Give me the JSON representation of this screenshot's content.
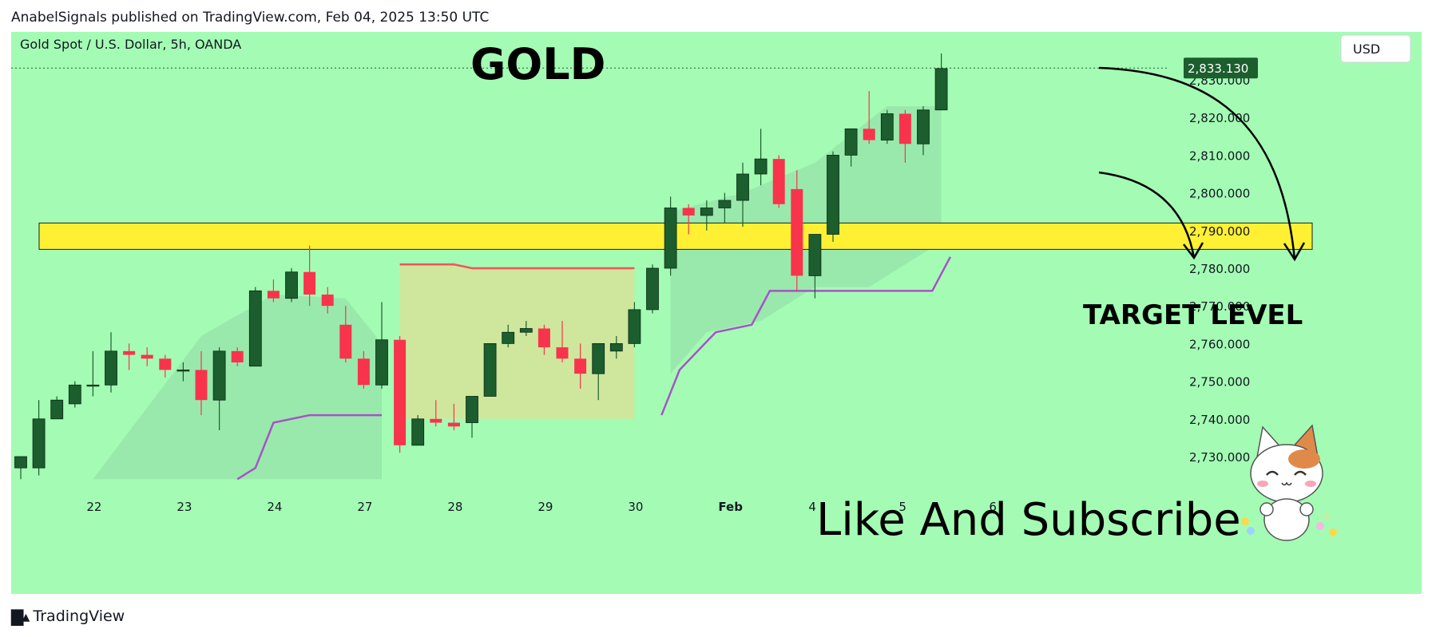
{
  "header": {
    "published_by": "AnabelSignals published on TradingView.com, Feb 04, 2025 13:50 UTC"
  },
  "footer": {
    "brand": "TradingView",
    "logo_icon": "tradingview-logo-icon"
  },
  "chart_data": {
    "type": "candlestick",
    "symbol_label": "Gold Spot / U.S. Dollar, 5h, OANDA",
    "title": "GOLD",
    "currency_button": "USD",
    "last_price_label": "2,833.130",
    "last_price": 2833.13,
    "ylim": [
      2724,
      2840
    ],
    "y_ticks": [
      {
        "value": 2730,
        "label": "2,730.000"
      },
      {
        "value": 2740,
        "label": "2,740.000"
      },
      {
        "value": 2750,
        "label": "2,750.000"
      },
      {
        "value": 2760,
        "label": "2,760.000"
      },
      {
        "value": 2770,
        "label": "2,770.000"
      },
      {
        "value": 2780,
        "label": "2,780.000"
      },
      {
        "value": 2790,
        "label": "2,790.000"
      },
      {
        "value": 2800,
        "label": "2,800.000"
      },
      {
        "value": 2810,
        "label": "2,810.000"
      },
      {
        "value": 2820,
        "label": "2,820.000"
      },
      {
        "value": 2830,
        "label": "2,830.000"
      }
    ],
    "x_ticks": [
      {
        "index": 4,
        "label": "22"
      },
      {
        "index": 9,
        "label": "23"
      },
      {
        "index": 14,
        "label": "24"
      },
      {
        "index": 19,
        "label": "27"
      },
      {
        "index": 24,
        "label": "28"
      },
      {
        "index": 29,
        "label": "29"
      },
      {
        "index": 34,
        "label": "30"
      },
      {
        "index": 39,
        "label": "Feb"
      },
      {
        "index": 44,
        "label": "4"
      },
      {
        "index": 49,
        "label": "5"
      },
      {
        "index": 54,
        "label": "6"
      }
    ],
    "candles": [
      {
        "o": 2727,
        "h": 2730,
        "l": 2724,
        "c": 2730
      },
      {
        "o": 2727,
        "h": 2745,
        "l": 2725,
        "c": 2740
      },
      {
        "o": 2740,
        "h": 2746,
        "l": 2740,
        "c": 2745
      },
      {
        "o": 2744,
        "h": 2750,
        "l": 2743,
        "c": 2749
      },
      {
        "o": 2749,
        "h": 2758,
        "l": 2746,
        "c": 2749
      },
      {
        "o": 2749,
        "h": 2763,
        "l": 2747,
        "c": 2758
      },
      {
        "o": 2758,
        "h": 2760,
        "l": 2753,
        "c": 2757
      },
      {
        "o": 2757,
        "h": 2759,
        "l": 2754,
        "c": 2756
      },
      {
        "o": 2756,
        "h": 2757,
        "l": 2751,
        "c": 2753
      },
      {
        "o": 2753,
        "h": 2755,
        "l": 2750,
        "c": 2753
      },
      {
        "o": 2753,
        "h": 2758,
        "l": 2741,
        "c": 2745
      },
      {
        "o": 2745,
        "h": 2759,
        "l": 2737,
        "c": 2758
      },
      {
        "o": 2758,
        "h": 2759,
        "l": 2754,
        "c": 2755
      },
      {
        "o": 2754,
        "h": 2775,
        "l": 2754,
        "c": 2774
      },
      {
        "o": 2774,
        "h": 2777,
        "l": 2771,
        "c": 2772
      },
      {
        "o": 2772,
        "h": 2780,
        "l": 2771,
        "c": 2779
      },
      {
        "o": 2779,
        "h": 2786,
        "l": 2770,
        "c": 2773
      },
      {
        "o": 2773,
        "h": 2775,
        "l": 2768,
        "c": 2770
      },
      {
        "o": 2765,
        "h": 2770,
        "l": 2755,
        "c": 2756
      },
      {
        "o": 2756,
        "h": 2758,
        "l": 2748,
        "c": 2749
      },
      {
        "o": 2749,
        "h": 2771,
        "l": 2748,
        "c": 2761
      },
      {
        "o": 2761,
        "h": 2762,
        "l": 2731,
        "c": 2733
      },
      {
        "o": 2733,
        "h": 2741,
        "l": 2733,
        "c": 2740
      },
      {
        "o": 2740,
        "h": 2745,
        "l": 2738,
        "c": 2739
      },
      {
        "o": 2739,
        "h": 2744,
        "l": 2737,
        "c": 2738
      },
      {
        "o": 2739,
        "h": 2745,
        "l": 2735,
        "c": 2746
      },
      {
        "o": 2746,
        "h": 2760,
        "l": 2746,
        "c": 2760
      },
      {
        "o": 2760,
        "h": 2765,
        "l": 2759,
        "c": 2763
      },
      {
        "o": 2763,
        "h": 2766,
        "l": 2762,
        "c": 2764
      },
      {
        "o": 2764,
        "h": 2765,
        "l": 2757,
        "c": 2759
      },
      {
        "o": 2759,
        "h": 2766,
        "l": 2755,
        "c": 2756
      },
      {
        "o": 2756,
        "h": 2760,
        "l": 2748,
        "c": 2752
      },
      {
        "o": 2752,
        "h": 2760,
        "l": 2745,
        "c": 2760
      },
      {
        "o": 2758,
        "h": 2762,
        "l": 2756,
        "c": 2760
      },
      {
        "o": 2760,
        "h": 2771,
        "l": 2759,
        "c": 2769
      },
      {
        "o": 2769,
        "h": 2781,
        "l": 2768,
        "c": 2780
      },
      {
        "o": 2780,
        "h": 2799,
        "l": 2778,
        "c": 2796
      },
      {
        "o": 2796,
        "h": 2797,
        "l": 2789,
        "c": 2794
      },
      {
        "o": 2794,
        "h": 2798,
        "l": 2790,
        "c": 2796
      },
      {
        "o": 2796,
        "h": 2800,
        "l": 2792,
        "c": 2798
      },
      {
        "o": 2798,
        "h": 2808,
        "l": 2791,
        "c": 2805
      },
      {
        "o": 2805,
        "h": 2817,
        "l": 2802,
        "c": 2809
      },
      {
        "o": 2809,
        "h": 2810,
        "l": 2796,
        "c": 2797
      },
      {
        "o": 2801,
        "h": 2806,
        "l": 2774,
        "c": 2778
      },
      {
        "o": 2778,
        "h": 2789,
        "l": 2772,
        "c": 2789
      },
      {
        "o": 2789,
        "h": 2811,
        "l": 2787,
        "c": 2810
      },
      {
        "o": 2810,
        "h": 2817,
        "l": 2807,
        "c": 2817
      },
      {
        "o": 2817,
        "h": 2827,
        "l": 2813,
        "c": 2814
      },
      {
        "o": 2814,
        "h": 2822,
        "l": 2813,
        "c": 2821
      },
      {
        "o": 2821,
        "h": 2822,
        "l": 2808,
        "c": 2813
      },
      {
        "o": 2813,
        "h": 2823,
        "l": 2810,
        "c": 2822
      },
      {
        "o": 2822,
        "h": 2837,
        "l": 2822,
        "c": 2833
      }
    ],
    "zone": {
      "low": 2785,
      "high": 2792
    },
    "annotations": {
      "target_label": "TARGET LEVEL",
      "cta": "Like And Subscribe",
      "mascot_icon": "cat-mascot-icon"
    },
    "colors": {
      "background": "#a4fcb4",
      "up_candle": "#1c5e2e",
      "down_candle": "#f7344c",
      "zone": "#fff034",
      "upper_band": "#f5525a",
      "lower_band": "#a653c7",
      "price_badge": "#1c5e2e"
    }
  }
}
